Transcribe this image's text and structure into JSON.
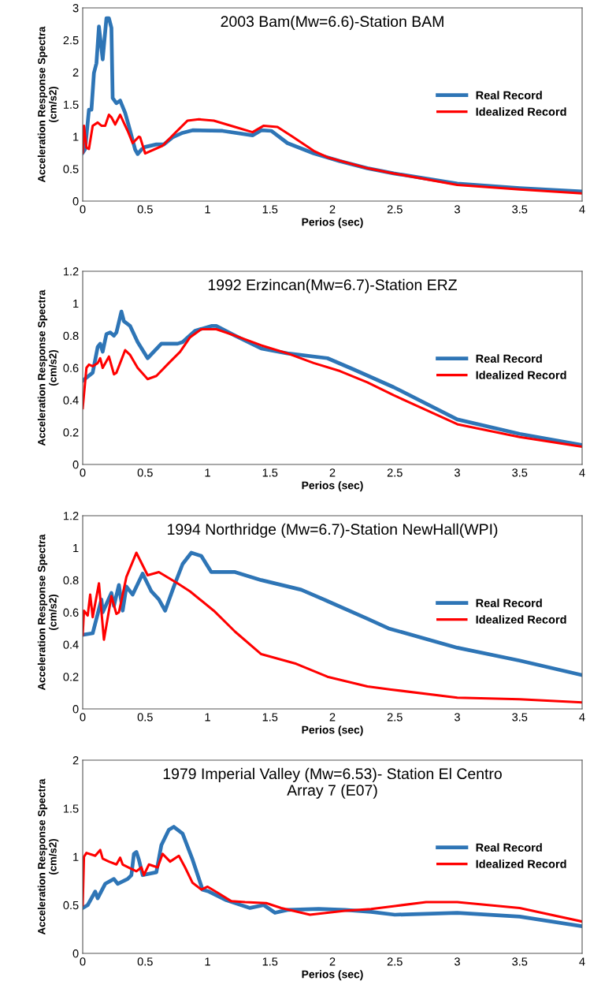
{
  "chart_data": [
    {
      "type": "line",
      "title": "2003 Bam(Mw=6.6)-Station BAM",
      "xlabel": "Perios (sec)",
      "ylabel": "Acceleration Response Spectra\n(cm/s2)",
      "xlim": [
        0,
        4
      ],
      "ylim": [
        0,
        3
      ],
      "xticks": [
        0,
        0.5,
        1,
        1.5,
        2,
        2.5,
        3,
        3.5,
        4
      ],
      "yticks": [
        0,
        0.5,
        1,
        1.5,
        2,
        2.5,
        3
      ],
      "grid": false,
      "legend": "right",
      "marker": "none",
      "line_style": "solid",
      "series": [
        {
          "name": "Real Record",
          "color": "#2e75b6",
          "x": [
            0,
            0.02,
            0.05,
            0.07,
            0.09,
            0.11,
            0.13,
            0.16,
            0.19,
            0.21,
            0.23,
            0.24,
            0.27,
            0.3,
            0.34,
            0.38,
            0.42,
            0.44,
            0.47,
            0.5,
            0.59,
            0.65,
            0.72,
            0.8,
            0.88,
            1.12,
            1.36,
            1.43,
            1.51,
            1.64,
            1.85,
            2.06,
            2.28,
            2.49,
            3,
            3.5,
            4
          ],
          "values": [
            0.75,
            0.81,
            1.42,
            1.42,
            1.99,
            2.14,
            2.71,
            2.2,
            2.84,
            2.84,
            2.69,
            1.6,
            1.52,
            1.56,
            1.37,
            1.09,
            0.8,
            0.73,
            0.8,
            0.84,
            0.88,
            0.88,
            0.99,
            1.06,
            1.1,
            1.09,
            1.02,
            1.1,
            1.09,
            0.9,
            0.74,
            0.62,
            0.51,
            0.43,
            0.27,
            0.2,
            0.15
          ]
        },
        {
          "name": "Idealized Record",
          "color": "#ff0000",
          "x": [
            0,
            0.01,
            0.03,
            0.05,
            0.08,
            0.12,
            0.15,
            0.18,
            0.21,
            0.23,
            0.26,
            0.3,
            0.36,
            0.4,
            0.45,
            0.46,
            0.5,
            0.64,
            0.72,
            0.84,
            0.93,
            1.05,
            1.22,
            1.36,
            1.45,
            1.56,
            1.68,
            1.85,
            1.96,
            2.28,
            2.49,
            3,
            3.5,
            4
          ],
          "values": [
            0.75,
            1.17,
            0.83,
            0.81,
            1.17,
            1.22,
            1.17,
            1.17,
            1.34,
            1.3,
            1.19,
            1.34,
            1.09,
            0.9,
            1.0,
            0.99,
            0.74,
            0.86,
            1.02,
            1.25,
            1.27,
            1.25,
            1.15,
            1.07,
            1.17,
            1.15,
            1.0,
            0.78,
            0.68,
            0.51,
            0.43,
            0.25,
            0.18,
            0.12
          ]
        }
      ]
    },
    {
      "type": "line",
      "title": "1992 Erzincan(Mw=6.7)-Station ERZ",
      "xlabel": "Perios (sec)",
      "ylabel": "Acceleration Response Spectra\n(cm/s2)",
      "xlim": [
        0,
        4
      ],
      "ylim": [
        0,
        1.2
      ],
      "xticks": [
        0,
        0.5,
        1,
        1.5,
        2,
        2.5,
        3,
        3.5,
        4
      ],
      "yticks": [
        0,
        0.2,
        0.4,
        0.6,
        0.8,
        1,
        1.2
      ],
      "grid": false,
      "legend": "right",
      "marker": "none",
      "line_style": "solid",
      "series": [
        {
          "name": "Real Record",
          "color": "#2e75b6",
          "x": [
            0,
            0.08,
            0.12,
            0.14,
            0.16,
            0.19,
            0.22,
            0.25,
            0.27,
            0.31,
            0.33,
            0.38,
            0.44,
            0.52,
            0.63,
            0.76,
            0.8,
            0.9,
            1.03,
            1.07,
            1.22,
            1.43,
            1.64,
            1.96,
            2.17,
            2.49,
            3,
            3.5,
            4
          ],
          "values": [
            0.52,
            0.57,
            0.73,
            0.75,
            0.7,
            0.81,
            0.82,
            0.8,
            0.82,
            0.95,
            0.89,
            0.86,
            0.76,
            0.66,
            0.75,
            0.75,
            0.76,
            0.83,
            0.86,
            0.86,
            0.8,
            0.72,
            0.69,
            0.66,
            0.59,
            0.48,
            0.28,
            0.19,
            0.12
          ]
        },
        {
          "name": "Idealized Record",
          "color": "#ff0000",
          "x": [
            0,
            0.03,
            0.05,
            0.08,
            0.12,
            0.14,
            0.16,
            0.21,
            0.25,
            0.27,
            0.34,
            0.38,
            0.44,
            0.52,
            0.59,
            0.69,
            0.78,
            0.86,
            0.95,
            1.07,
            1.22,
            1.43,
            1.64,
            1.85,
            2.06,
            2.28,
            2.49,
            3,
            3.5,
            4
          ],
          "values": [
            0.35,
            0.6,
            0.62,
            0.61,
            0.63,
            0.66,
            0.6,
            0.67,
            0.56,
            0.57,
            0.71,
            0.68,
            0.6,
            0.53,
            0.55,
            0.63,
            0.7,
            0.79,
            0.84,
            0.84,
            0.8,
            0.74,
            0.69,
            0.63,
            0.58,
            0.51,
            0.43,
            0.25,
            0.17,
            0.11
          ]
        }
      ]
    },
    {
      "type": "line",
      "title": "1994 Northridge (Mw=6.7)-Station NewHall(WPI)",
      "xlabel": "Perios (sec)",
      "ylabel": "Acceleration Response Spectra\n(cm/s2)",
      "xlim": [
        0,
        4
      ],
      "ylim": [
        0,
        1.2
      ],
      "xticks": [
        0,
        0.5,
        1,
        1.5,
        2,
        2.5,
        3,
        3.5,
        4
      ],
      "yticks": [
        0,
        0.2,
        0.4,
        0.6,
        0.8,
        1,
        1.2
      ],
      "grid": false,
      "legend": "right",
      "marker": "none",
      "line_style": "solid",
      "series": [
        {
          "name": "Real Record",
          "color": "#2e75b6",
          "x": [
            0,
            0.08,
            0.15,
            0.16,
            0.23,
            0.25,
            0.29,
            0.32,
            0.35,
            0.4,
            0.48,
            0.55,
            0.61,
            0.66,
            0.73,
            0.8,
            0.87,
            0.95,
            1.03,
            1.22,
            1.43,
            1.75,
            1.96,
            2.28,
            2.45,
            3,
            3.5,
            4
          ],
          "values": [
            0.46,
            0.47,
            0.68,
            0.6,
            0.72,
            0.64,
            0.77,
            0.61,
            0.76,
            0.71,
            0.84,
            0.73,
            0.68,
            0.61,
            0.76,
            0.9,
            0.97,
            0.95,
            0.85,
            0.85,
            0.8,
            0.74,
            0.67,
            0.56,
            0.5,
            0.38,
            0.3,
            0.21
          ]
        },
        {
          "name": "Idealized Record",
          "color": "#ff0000",
          "x": [
            0,
            0.01,
            0.04,
            0.06,
            0.08,
            0.13,
            0.17,
            0.23,
            0.27,
            0.29,
            0.35,
            0.43,
            0.52,
            0.61,
            0.76,
            0.86,
            1.05,
            1.22,
            1.43,
            1.71,
            1.96,
            2.28,
            2.47,
            3,
            3.5,
            4
          ],
          "values": [
            0.46,
            0.61,
            0.58,
            0.71,
            0.57,
            0.78,
            0.43,
            0.7,
            0.59,
            0.6,
            0.82,
            0.97,
            0.83,
            0.85,
            0.78,
            0.73,
            0.61,
            0.48,
            0.34,
            0.28,
            0.2,
            0.14,
            0.12,
            0.07,
            0.06,
            0.04
          ]
        }
      ]
    },
    {
      "type": "line",
      "title": "1979 Imperial Valley (Mw=6.53)- Station El Centro\nArray 7 (E07)",
      "xlabel": "Perios (sec)",
      "ylabel": "Acceleration Response Spectra\n(cm/s2)",
      "xlim": [
        0,
        4
      ],
      "ylim": [
        0,
        2
      ],
      "xticks": [
        0,
        0.5,
        1,
        1.5,
        2,
        2.5,
        3,
        3.5,
        4
      ],
      "yticks": [
        0,
        0.5,
        1,
        1.5,
        2
      ],
      "grid": false,
      "legend": "right",
      "marker": "none",
      "line_style": "solid",
      "series": [
        {
          "name": "Real Record",
          "color": "#2e75b6",
          "x": [
            0,
            0.04,
            0.1,
            0.12,
            0.18,
            0.25,
            0.28,
            0.36,
            0.39,
            0.41,
            0.43,
            0.45,
            0.48,
            0.59,
            0.63,
            0.69,
            0.73,
            0.8,
            0.88,
            0.96,
            1.01,
            1.15,
            1.34,
            1.45,
            1.54,
            1.64,
            1.89,
            2.1,
            2.31,
            2.5,
            3,
            3.5,
            4
          ],
          "values": [
            0.47,
            0.5,
            0.64,
            0.57,
            0.72,
            0.77,
            0.72,
            0.77,
            0.81,
            1.03,
            1.05,
            0.97,
            0.81,
            0.84,
            1.12,
            1.28,
            1.31,
            1.24,
            0.97,
            0.66,
            0.64,
            0.55,
            0.47,
            0.5,
            0.42,
            0.45,
            0.46,
            0.45,
            0.43,
            0.4,
            0.42,
            0.38,
            0.28
          ]
        },
        {
          "name": "Idealized Record",
          "color": "#ff0000",
          "x": [
            0,
            0.01,
            0.03,
            0.1,
            0.14,
            0.16,
            0.21,
            0.27,
            0.3,
            0.32,
            0.38,
            0.43,
            0.47,
            0.49,
            0.53,
            0.6,
            0.64,
            0.7,
            0.77,
            0.82,
            0.88,
            0.95,
            1.0,
            1.09,
            1.19,
            1.3,
            1.47,
            1.59,
            1.82,
            2.1,
            2.31,
            2.5,
            2.75,
            3,
            3.5,
            4
          ],
          "values": [
            0.5,
            1.0,
            1.04,
            1.01,
            1.07,
            0.98,
            0.95,
            0.92,
            0.99,
            0.92,
            0.88,
            0.85,
            0.89,
            0.81,
            0.92,
            0.89,
            1.03,
            0.95,
            1.01,
            0.89,
            0.73,
            0.66,
            0.69,
            0.62,
            0.54,
            0.53,
            0.52,
            0.47,
            0.4,
            0.44,
            0.46,
            0.49,
            0.53,
            0.53,
            0.47,
            0.33
          ]
        }
      ]
    }
  ]
}
